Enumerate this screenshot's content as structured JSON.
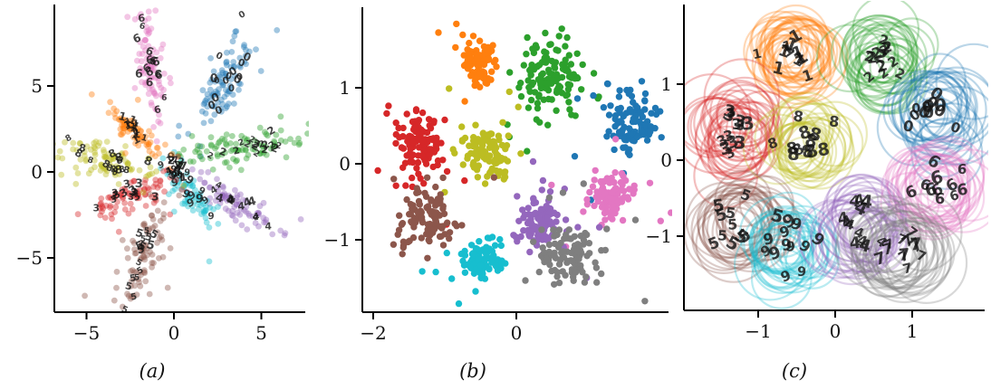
{
  "figure_title": "",
  "palette": {
    "blue": "#1f77b4",
    "orange": "#ff7f0e",
    "green": "#2ca02c",
    "red": "#d62728",
    "purple": "#9467bd",
    "brown": "#8c564b",
    "pink": "#e377c2",
    "gray": "#7f7f7f",
    "olive": "#bcbd22",
    "cyan": "#17becf",
    "digit_ink": "#141414",
    "axis": "#000000"
  },
  "chart_data": [
    {
      "id": "a",
      "label": "(a)",
      "type": "scatter",
      "style": "translucent dots in radial arms with handwritten digit glyphs",
      "xticks": [
        -5,
        0,
        5
      ],
      "yticks": [
        5,
        0,
        -5
      ],
      "xlim": [
        -6.8,
        7.5
      ],
      "ylim": [
        -8.2,
        9.7
      ],
      "marker": {
        "radius": 3.4,
        "alpha": 0.42
      },
      "digit_glyphs": true,
      "clusters": [
        {
          "digit": "6",
          "color": "#e377c2",
          "center": [
            -1.4,
            6.4
          ],
          "angle": 102,
          "len": 1.5,
          "wid": 0.38,
          "count": 80,
          "digits": 15
        },
        {
          "digit": "0",
          "color": "#1f77b4",
          "center": [
            2.9,
            5.2
          ],
          "angle": 62,
          "len": 1.6,
          "wid": 0.5,
          "count": 85,
          "digits": 15
        },
        {
          "digit": "2",
          "color": "#2ca02c",
          "center": [
            4.0,
            1.45
          ],
          "angle": 10,
          "len": 1.75,
          "wid": 0.42,
          "count": 90,
          "digits": 16
        },
        {
          "digit": "4",
          "color": "#9467bd",
          "center": [
            3.3,
            -1.7
          ],
          "angle": -35,
          "len": 1.3,
          "wid": 0.35,
          "count": 70,
          "digits": 12
        },
        {
          "digit": "9",
          "color": "#17becf",
          "center": [
            1.0,
            -1.3
          ],
          "angle": -52,
          "len": 1.0,
          "wid": 0.4,
          "count": 65,
          "digits": 14
        },
        {
          "digit": "5",
          "color": "#8c564b",
          "center": [
            -1.9,
            -4.9
          ],
          "angle": 249,
          "len": 1.7,
          "wid": 0.55,
          "count": 85,
          "digits": 16
        },
        {
          "digit": "3",
          "color": "#d62728",
          "center": [
            -2.5,
            -1.4
          ],
          "angle": 204,
          "len": 1.2,
          "wid": 0.42,
          "count": 75,
          "digits": 14
        },
        {
          "digit": "8",
          "color": "#bcbd22",
          "center": [
            -3.7,
            0.7
          ],
          "angle": 163,
          "len": 1.5,
          "wid": 0.55,
          "count": 85,
          "digits": 15
        },
        {
          "digit": "1",
          "color": "#ff7f0e",
          "center": [
            -2.3,
            2.3
          ],
          "angle": 139,
          "len": 0.95,
          "wid": 0.25,
          "count": 70,
          "digits": 13
        }
      ],
      "center_blob": {
        "digits": [
          "1",
          "9",
          "4",
          "7",
          "2"
        ],
        "center": [
          0.15,
          0.1
        ],
        "spread": 0.45,
        "count": 16
      }
    },
    {
      "id": "b",
      "label": "(b)",
      "type": "scatter",
      "style": "opaque dot clusters",
      "xticks": [
        -2,
        0
      ],
      "yticks": [
        1,
        0,
        -1
      ],
      "xlim": [
        -2.15,
        2.13
      ],
      "ylim": [
        -1.95,
        2.06
      ],
      "marker": {
        "radius": 3.7,
        "alpha": 1.0
      },
      "digit_glyphs": false,
      "clusters": [
        {
          "digit": "1",
          "color": "#ff7f0e",
          "center": [
            -0.52,
            1.32
          ],
          "sigma": 0.13,
          "count": 80
        },
        {
          "digit": "2",
          "color": "#2ca02c",
          "center": [
            0.5,
            1.15
          ],
          "sigma": 0.23,
          "count": 120
        },
        {
          "digit": "0",
          "color": "#1f77b4",
          "center": [
            1.55,
            0.55
          ],
          "sigma": 0.2,
          "count": 100
        },
        {
          "digit": "3",
          "color": "#d62728",
          "center": [
            -1.35,
            0.28
          ],
          "sigma": 0.2,
          "count": 110
        },
        {
          "digit": "8",
          "color": "#bcbd22",
          "center": [
            -0.4,
            0.15
          ],
          "sigma": 0.16,
          "count": 95
        },
        {
          "digit": "6",
          "color": "#e377c2",
          "center": [
            1.33,
            -0.45
          ],
          "sigma": 0.15,
          "count": 85
        },
        {
          "digit": "5",
          "color": "#8c564b",
          "center": [
            -1.22,
            -0.72
          ],
          "sigma": 0.2,
          "count": 100
        },
        {
          "digit": "9",
          "color": "#17becf",
          "center": [
            -0.5,
            -1.28
          ],
          "sigma": 0.15,
          "count": 90
        },
        {
          "digit": "4",
          "color": "#9467bd",
          "center": [
            0.3,
            -0.78
          ],
          "sigma": 0.17,
          "count": 90
        },
        {
          "digit": "7",
          "color": "#7f7f7f",
          "center": [
            0.72,
            -1.18
          ],
          "sigma": 0.2,
          "count": 100
        }
      ]
    },
    {
      "id": "c",
      "label": "(c)",
      "type": "scatter",
      "style": "translucent ring ensembles with handwritten digit glyphs",
      "xticks": [
        -1,
        0,
        1
      ],
      "yticks": [
        1,
        0,
        -1
      ],
      "xlim": [
        -1.96,
        1.94
      ],
      "ylim": [
        -1.98,
        2.05
      ],
      "ring": {
        "stroke_width": 2.2,
        "alpha": 0.3,
        "radius": 0.42
      },
      "digit_glyphs": true,
      "clusters": [
        {
          "digit": "1",
          "color": "#ff7f0e",
          "center": [
            -0.55,
            1.35
          ],
          "sigma": 0.15,
          "radius": 0.42,
          "rings": 30,
          "digits": 12
        },
        {
          "digit": "2",
          "color": "#2ca02c",
          "center": [
            0.6,
            1.3
          ],
          "sigma": 0.17,
          "radius": 0.4,
          "rings": 28,
          "digits": 13
        },
        {
          "digit": "0",
          "color": "#1f77b4",
          "center": [
            1.35,
            0.65
          ],
          "sigma": 0.18,
          "radius": 0.42,
          "rings": 28,
          "digits": 12
        },
        {
          "digit": "3",
          "color": "#d62728",
          "center": [
            -1.3,
            0.35
          ],
          "sigma": 0.18,
          "radius": 0.42,
          "rings": 30,
          "digits": 13
        },
        {
          "digit": "8",
          "color": "#bcbd22",
          "center": [
            -0.35,
            0.25
          ],
          "sigma": 0.15,
          "radius": 0.38,
          "rings": 26,
          "digits": 12
        },
        {
          "digit": "6",
          "color": "#e377c2",
          "center": [
            1.3,
            -0.4
          ],
          "sigma": 0.17,
          "radius": 0.42,
          "rings": 28,
          "digits": 11
        },
        {
          "digit": "5",
          "color": "#8c564b",
          "center": [
            -1.25,
            -0.85
          ],
          "sigma": 0.16,
          "radius": 0.42,
          "rings": 26,
          "digits": 11
        },
        {
          "digit": "9",
          "color": "#17becf",
          "center": [
            -0.6,
            -1.15
          ],
          "sigma": 0.16,
          "radius": 0.4,
          "rings": 28,
          "digits": 12
        },
        {
          "digit": "4",
          "color": "#9467bd",
          "center": [
            0.3,
            -0.85
          ],
          "sigma": 0.16,
          "radius": 0.42,
          "rings": 28,
          "digits": 12
        },
        {
          "digit": "7",
          "color": "#7f7f7f",
          "center": [
            0.8,
            -1.15
          ],
          "sigma": 0.18,
          "radius": 0.45,
          "rings": 28,
          "digits": 12
        }
      ]
    }
  ]
}
